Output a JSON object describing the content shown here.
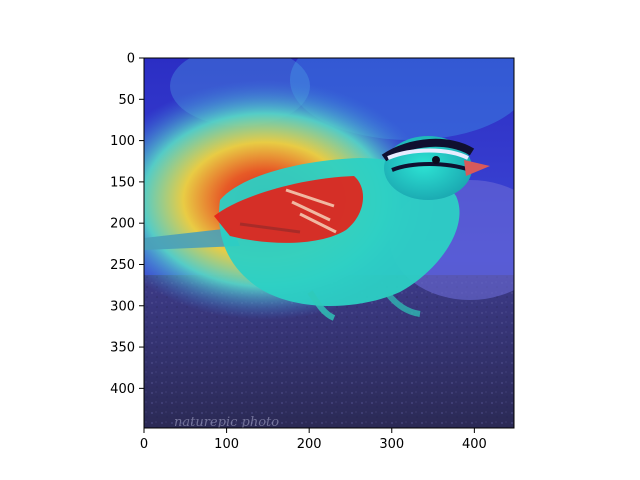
{
  "figure": {
    "type": "heatmap",
    "subject": "bird",
    "overlay_colormap": "jet",
    "colors": {
      "background": "#ffffff",
      "frame": "#000000",
      "ground": "#3b3a6e",
      "bird_body": "#2fd6c6",
      "hot_region": "#e3231b",
      "cool_region": "#2a2bd8"
    },
    "x_axis": {
      "range": [
        0,
        448
      ],
      "ticks": [
        "0",
        "100",
        "200",
        "300",
        "400"
      ],
      "tick_values": [
        0,
        100,
        200,
        300,
        400
      ]
    },
    "y_axis": {
      "range": [
        0,
        448
      ],
      "inverted": true,
      "ticks": [
        "0",
        "50",
        "100",
        "150",
        "200",
        "250",
        "300",
        "350",
        "400"
      ],
      "tick_values": [
        0,
        50,
        100,
        150,
        200,
        250,
        300,
        350,
        400
      ]
    },
    "watermark": "naturepic photo"
  }
}
